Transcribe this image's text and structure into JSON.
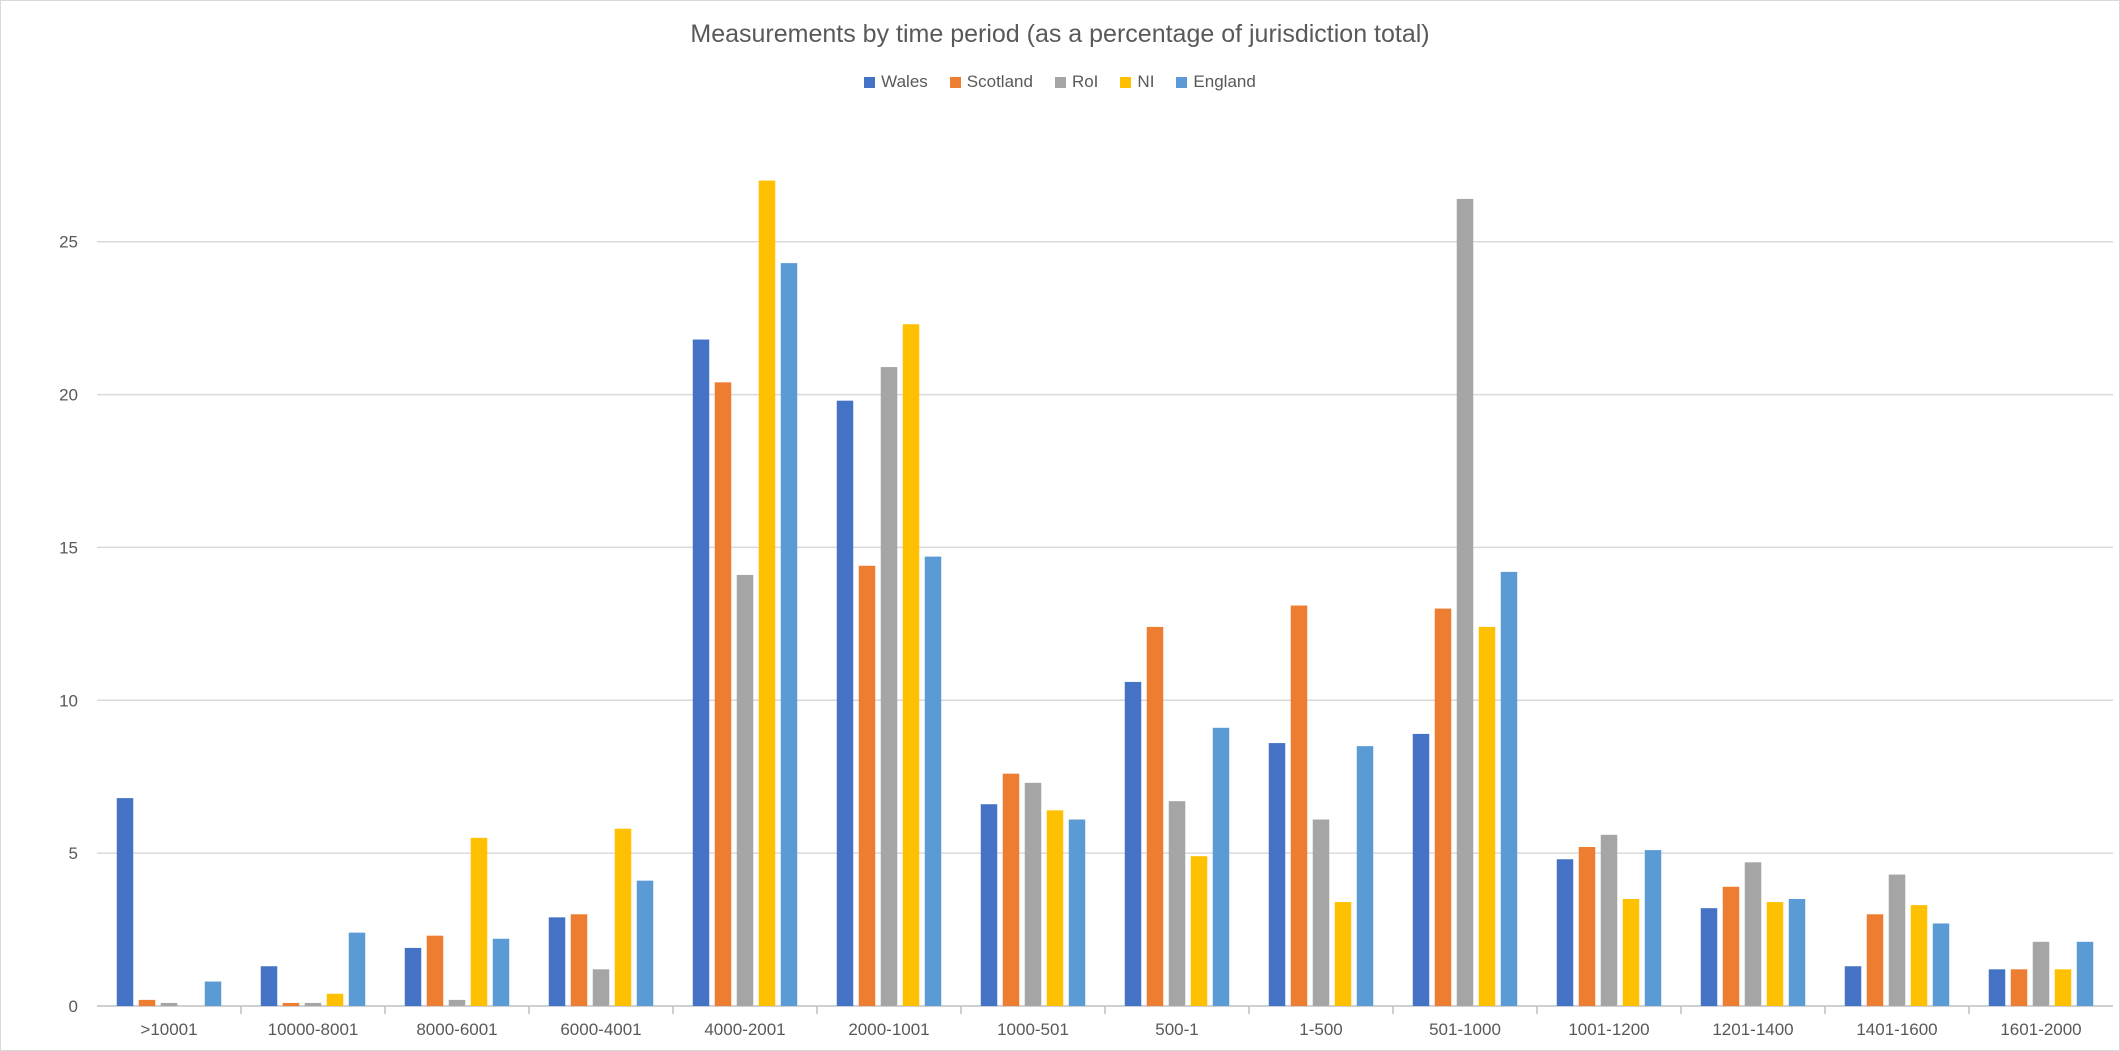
{
  "chart_data": {
    "type": "bar",
    "title": "Measurements by time period (as a percentage of jurisdiction total)",
    "xlabel": "",
    "ylabel": "",
    "ylim": [
      0,
      28
    ],
    "yticks": [
      0,
      5,
      10,
      15,
      20,
      25
    ],
    "grid": true,
    "legend_position": "top",
    "categories": [
      ">10001",
      "10000-8001",
      "8000-6001",
      "6000-4001",
      "4000-2001",
      "2000-1001",
      "1000-501",
      "500-1",
      "1-500",
      "501-1000",
      "1001-1200",
      "1201-1400",
      "1401-1600",
      "1601-2000"
    ],
    "series": [
      {
        "name": "Wales",
        "color": "#4472C4",
        "values": [
          6.8,
          1.3,
          1.9,
          2.9,
          21.8,
          19.8,
          6.6,
          10.6,
          8.6,
          8.9,
          4.8,
          3.2,
          1.3,
          1.2
        ]
      },
      {
        "name": "Scotland",
        "color": "#ED7D31",
        "values": [
          0.2,
          0.1,
          2.3,
          3.0,
          20.4,
          14.4,
          7.6,
          12.4,
          13.1,
          13.0,
          5.2,
          3.9,
          3.0,
          1.2
        ]
      },
      {
        "name": "RoI",
        "color": "#A5A5A5",
        "values": [
          0.1,
          0.1,
          0.2,
          1.2,
          14.1,
          20.9,
          7.3,
          6.7,
          6.1,
          26.4,
          5.6,
          4.7,
          4.3,
          2.1
        ]
      },
      {
        "name": "NI",
        "color": "#FFC000",
        "values": [
          0,
          0.4,
          5.5,
          5.8,
          27.0,
          22.3,
          6.4,
          4.9,
          3.4,
          12.4,
          3.5,
          3.4,
          3.3,
          1.2
        ]
      },
      {
        "name": "England",
        "color": "#5B9BD5",
        "values": [
          0.8,
          2.4,
          2.2,
          4.1,
          24.3,
          14.7,
          6.1,
          9.1,
          8.5,
          14.2,
          5.1,
          3.5,
          2.7,
          2.1
        ]
      }
    ]
  }
}
